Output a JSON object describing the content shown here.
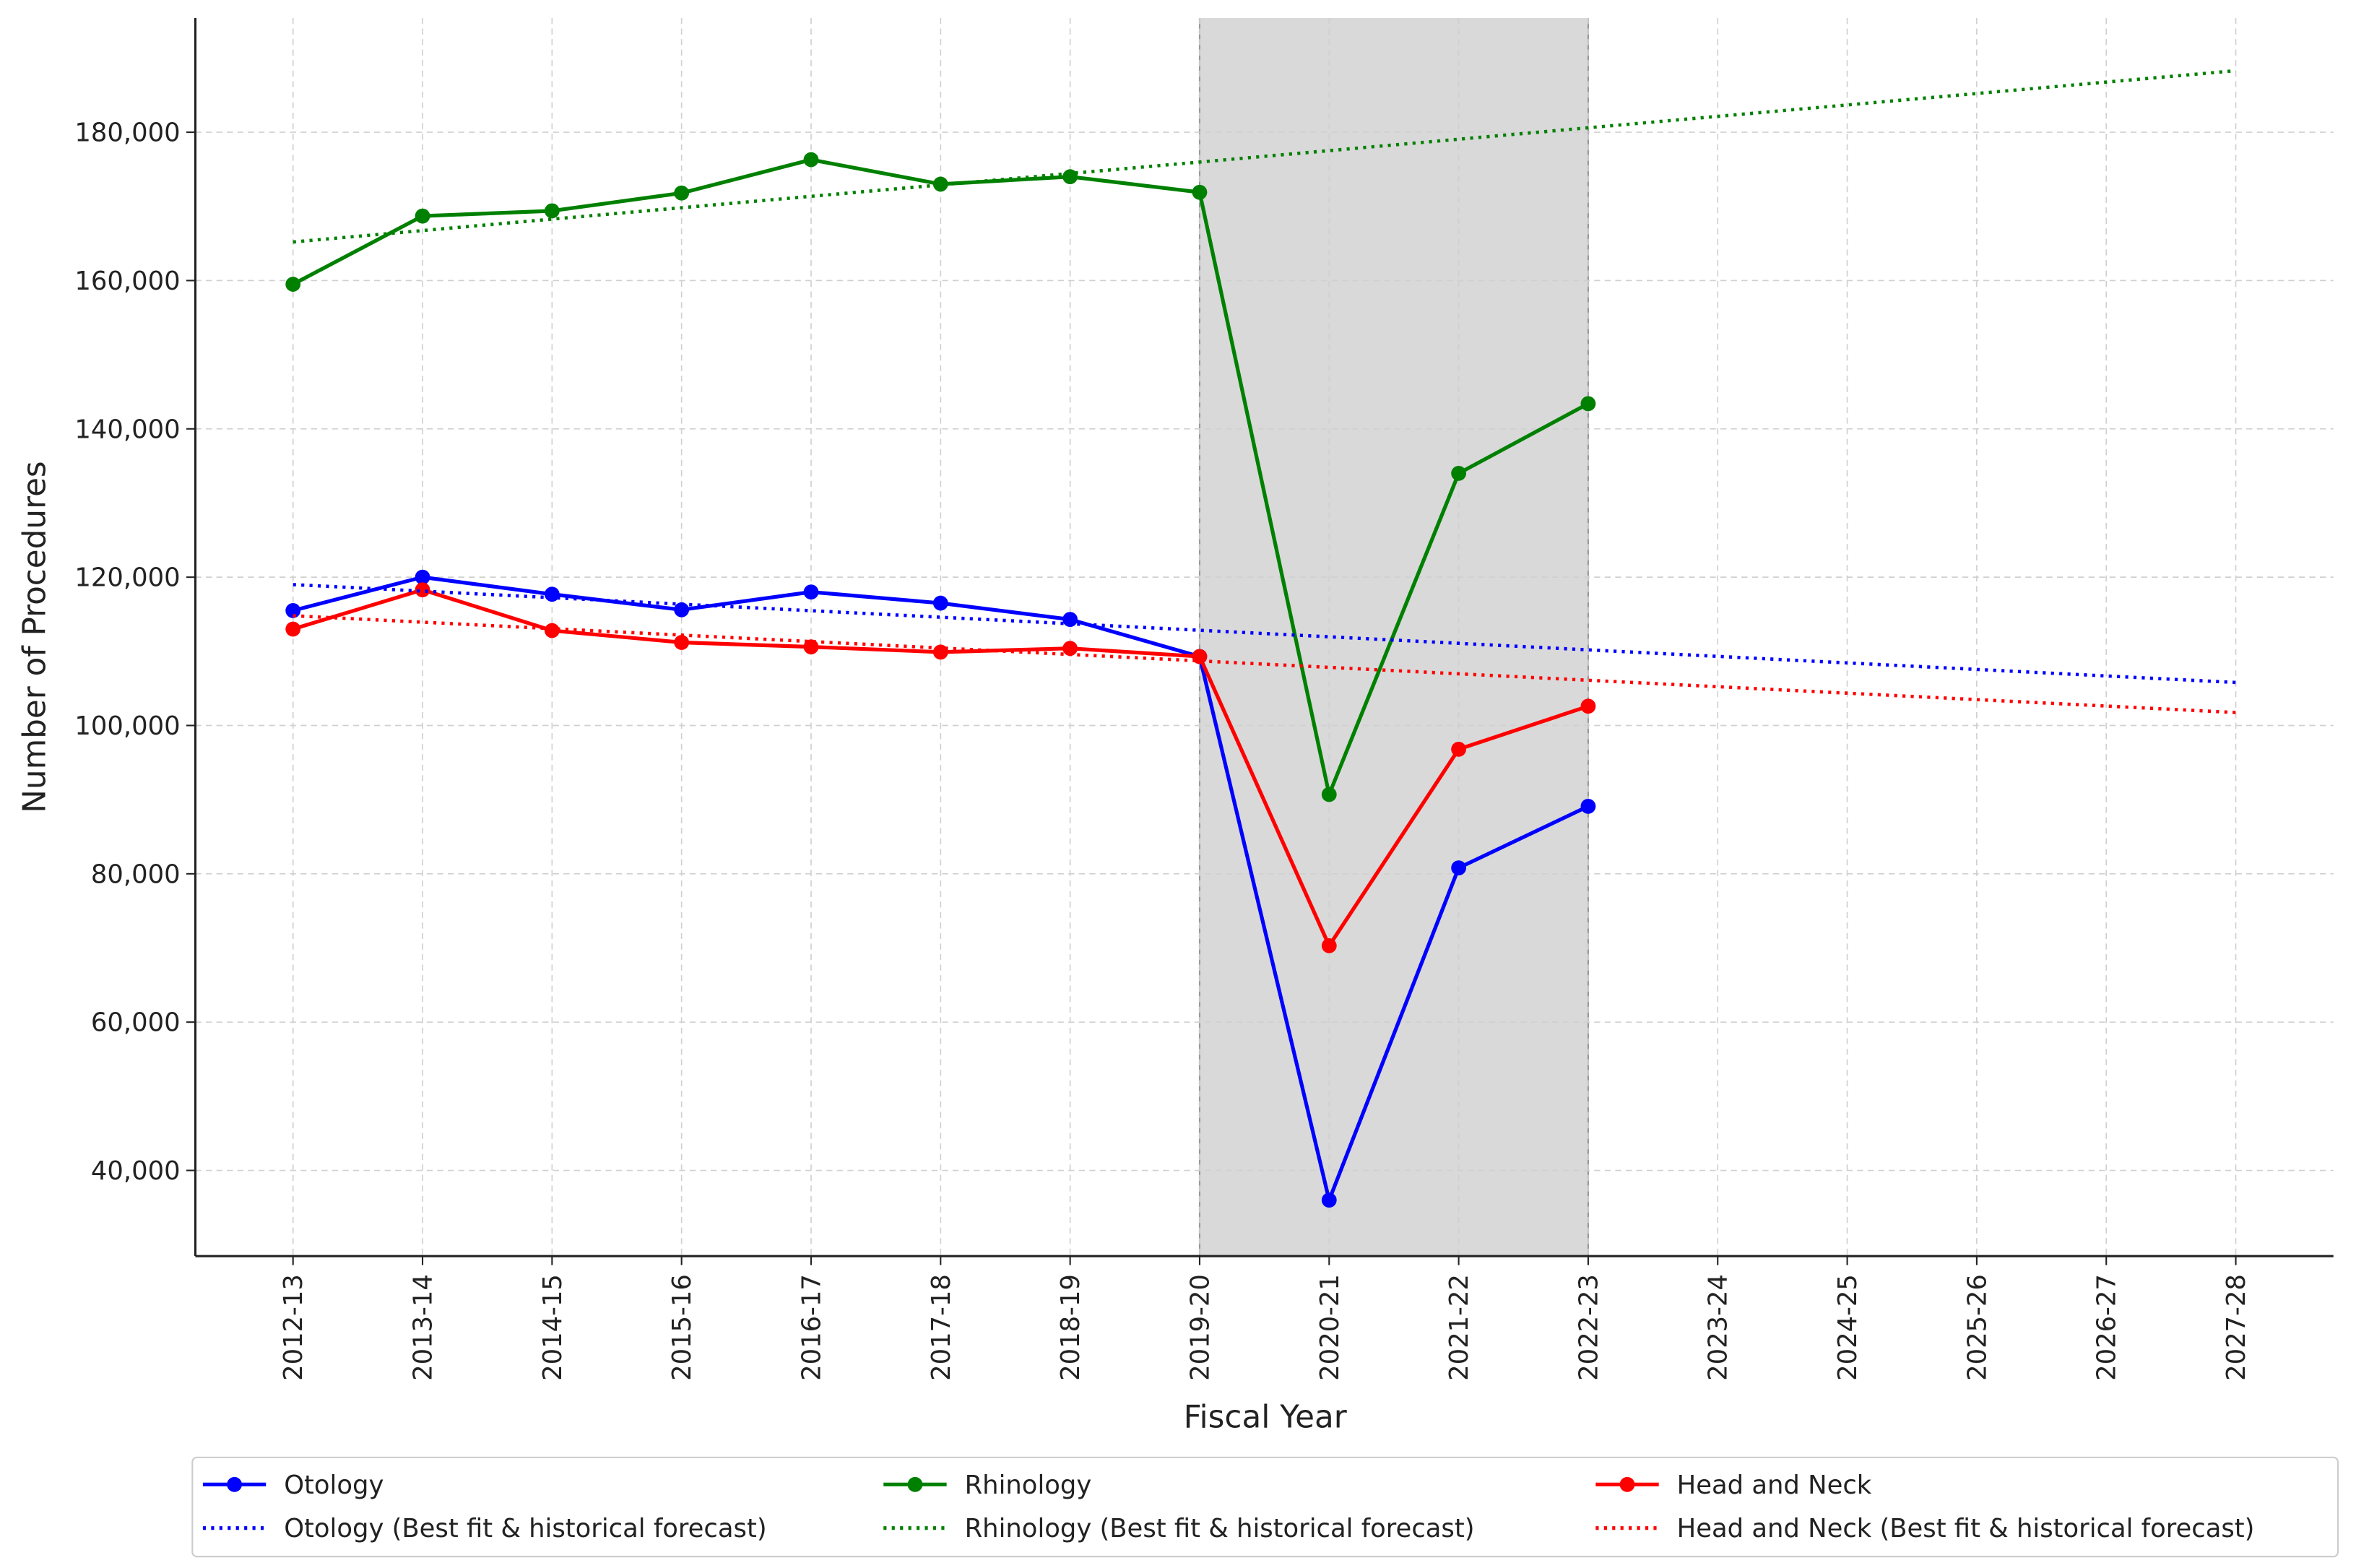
{
  "chart_data": {
    "type": "line",
    "x_label": "Fiscal Year",
    "y_label": "Number of Procedures",
    "categories": [
      "2012-13",
      "2013-14",
      "2014-15",
      "2015-16",
      "2016-17",
      "2017-18",
      "2018-19",
      "2019-20",
      "2020-21",
      "2021-22",
      "2022-23",
      "2023-24",
      "2024-25",
      "2025-26",
      "2026-27",
      "2027-28"
    ],
    "series": [
      {
        "name": "Otology",
        "color": "#0000ff",
        "style": "solid",
        "values": [
          115500,
          120000,
          117700,
          115600,
          118000,
          116500,
          114300,
          109300,
          36000,
          80800,
          89100,
          null,
          null,
          null,
          null,
          null
        ]
      },
      {
        "name": "Rhinology",
        "color": "#008000",
        "style": "solid",
        "values": [
          159500,
          168700,
          169400,
          171800,
          176300,
          173000,
          174000,
          171900,
          90700,
          134000,
          143400,
          null,
          null,
          null,
          null,
          null
        ]
      },
      {
        "name": "Head and Neck",
        "color": "#ff0000",
        "style": "solid",
        "values": [
          113000,
          118300,
          112800,
          111200,
          110600,
          109900,
          110400,
          109300,
          70300,
          96800,
          102600,
          null,
          null,
          null,
          null,
          null
        ]
      },
      {
        "name": "Otology (Best fit & historical forecast)",
        "color": "#0000ff",
        "style": "dotted",
        "values": [
          119000,
          118120,
          117240,
          116360,
          115480,
          114600,
          113720,
          112840,
          111960,
          111080,
          110200,
          109320,
          108440,
          107560,
          106680,
          105800
        ]
      },
      {
        "name": "Rhinology (Best fit & historical forecast)",
        "color": "#008000",
        "style": "dotted",
        "values": [
          165200,
          166740,
          168280,
          169820,
          171360,
          172900,
          174440,
          175980,
          177520,
          179060,
          180600,
          182140,
          183680,
          185220,
          186760,
          188300
        ]
      },
      {
        "name": "Head and Neck (Best fit & historical forecast)",
        "color": "#ff0000",
        "style": "dotted",
        "values": [
          114800,
          113930,
          113060,
          112190,
          111320,
          110450,
          109580,
          108710,
          107840,
          106970,
          106100,
          105230,
          104360,
          103490,
          102620,
          101750
        ]
      }
    ],
    "shaded_span": [
      7,
      10
    ],
    "shade_color": "#d9d9d9",
    "ylim": [
      28450,
      195400
    ],
    "yticks": [
      {
        "value": 40000,
        "label": "40,000"
      },
      {
        "value": 60000,
        "label": "60,000"
      },
      {
        "value": 80000,
        "label": "80,000"
      },
      {
        "value": 100000,
        "label": "100,000"
      },
      {
        "value": 120000,
        "label": "120,000"
      },
      {
        "value": 140000,
        "label": "140,000"
      },
      {
        "value": 160000,
        "label": "160,000"
      },
      {
        "value": 180000,
        "label": "180,000"
      }
    ],
    "grid": true,
    "legend": "bottom"
  }
}
